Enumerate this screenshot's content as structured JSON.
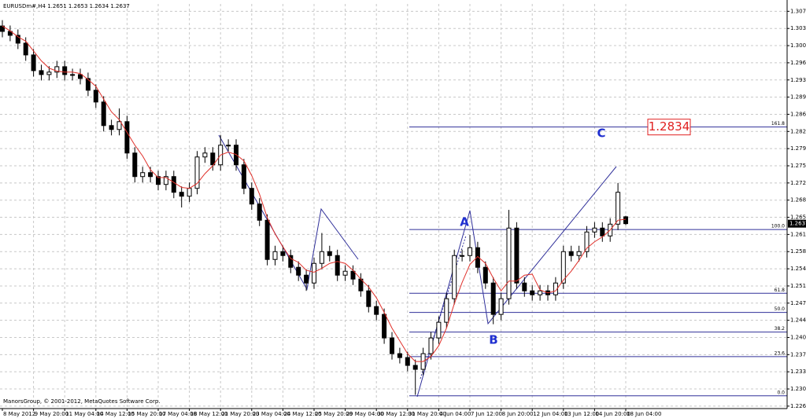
{
  "chart_data": {
    "type": "candlestick",
    "title": "EURUSDm#,H4  1.2651 1.2653 1.2634 1.2637",
    "footer": "ManorsGroup, © 2001-2012, MetaQuotes Software Corp.",
    "categories": [
      "8 May 2012",
      null,
      null,
      null,
      "9 May 20:00",
      null,
      null,
      null,
      "11 May 04:00",
      null,
      null,
      null,
      "14 May 12:00",
      null,
      null,
      null,
      "15 May 20:00",
      null,
      null,
      null,
      "17 May 04:00",
      null,
      null,
      null,
      "18 May 12:00",
      null,
      null,
      null,
      "21 May 20:00",
      null,
      null,
      null,
      "23 May 04:00",
      null,
      null,
      null,
      "24 May 12:00",
      null,
      null,
      null,
      "25 May 20:00",
      null,
      null,
      null,
      "29 May 04:00",
      null,
      null,
      null,
      "30 May 12:00",
      null,
      null,
      null,
      "31 May 20:00",
      null,
      null,
      null,
      "4 Jun 04:00",
      null,
      null,
      null,
      "7 Jun 12:00",
      null,
      null,
      null,
      "8 Jun 20:00",
      null,
      null,
      null,
      "12 Jun 04:00",
      null,
      null,
      null,
      "13 Jun 12:00",
      null,
      null,
      null,
      "14 Jun 20:00",
      null,
      null,
      null,
      "18 Jun 04:00"
    ],
    "open": [
      1.304,
      1.3029,
      1.3021,
      1.3005,
      1.2981,
      1.2949,
      1.2941,
      1.2946,
      1.2957,
      1.2941,
      1.2941,
      1.2933,
      1.2909,
      1.2885,
      1.2837,
      1.2829,
      1.2845,
      1.2781,
      1.2733,
      1.2741,
      1.2733,
      1.2717,
      1.2733,
      1.2701,
      1.2693,
      1.2709,
      1.2773,
      1.2781,
      1.2757,
      1.2797,
      1.2797,
      1.2757,
      1.2709,
      1.2677,
      1.2644,
      1.2564,
      1.258,
      1.2572,
      1.2548,
      1.2532,
      1.2516,
      1.2556,
      1.258,
      1.2572,
      1.2532,
      1.254,
      1.2524,
      1.25,
      1.2468,
      1.2452,
      1.2404,
      1.2372,
      1.2364,
      1.2348,
      1.234,
      1.2372,
      1.2404,
      1.2436,
      1.2484,
      1.2572,
      1.2572,
      1.2588,
      1.2548,
      1.2516,
      1.2452,
      1.2484,
      1.2628,
      1.2516,
      1.25,
      1.2492,
      1.25,
      1.2492,
      1.2516,
      1.258,
      1.2572,
      1.258,
      1.262,
      1.2628,
      1.2612,
      1.2636,
      1.2651
    ],
    "high": [
      1.3052,
      1.3041,
      1.3033,
      1.3017,
      1.2993,
      1.2961,
      1.2958,
      1.2969,
      1.2969,
      1.2953,
      1.2953,
      1.2945,
      1.2921,
      1.2897,
      1.2849,
      1.2872,
      1.2857,
      1.2793,
      1.2753,
      1.2753,
      1.2745,
      1.2745,
      1.2745,
      1.2713,
      1.2721,
      1.2785,
      1.2793,
      1.2793,
      1.2818,
      1.2809,
      1.2809,
      1.2769,
      1.2721,
      1.2689,
      1.2656,
      1.2592,
      1.2592,
      1.2584,
      1.256,
      1.2544,
      1.2568,
      1.2618,
      1.2592,
      1.2584,
      1.2552,
      1.2552,
      1.2536,
      1.2512,
      1.248,
      1.2464,
      1.2416,
      1.2384,
      1.2376,
      1.236,
      1.2384,
      1.2416,
      1.2448,
      1.2496,
      1.2584,
      1.2584,
      1.2614,
      1.26,
      1.256,
      1.2528,
      1.2496,
      1.2665,
      1.264,
      1.2528,
      1.2512,
      1.2512,
      1.2512,
      1.2528,
      1.2592,
      1.2592,
      1.2592,
      1.2632,
      1.264,
      1.264,
      1.2648,
      1.272,
      1.2653
    ],
    "low": [
      1.3017,
      1.3009,
      1.2993,
      1.2969,
      1.2937,
      1.2929,
      1.2929,
      1.2934,
      1.2929,
      1.2929,
      1.2921,
      1.2897,
      1.2873,
      1.2825,
      1.2817,
      1.2817,
      1.2769,
      1.2721,
      1.2721,
      1.2721,
      1.2705,
      1.2705,
      1.2689,
      1.267,
      1.2681,
      1.2697,
      1.2761,
      1.2745,
      1.2745,
      1.2785,
      1.2745,
      1.2697,
      1.2665,
      1.2632,
      1.2552,
      1.2552,
      1.256,
      1.2536,
      1.252,
      1.25,
      1.2504,
      1.2544,
      1.256,
      1.252,
      1.252,
      1.2512,
      1.2488,
      1.2456,
      1.244,
      1.2392,
      1.236,
      1.2352,
      1.2336,
      1.2288,
      1.2328,
      1.236,
      1.2392,
      1.2424,
      1.2472,
      1.256,
      1.256,
      1.2536,
      1.2504,
      1.2432,
      1.244,
      1.2472,
      1.2504,
      1.2488,
      1.248,
      1.248,
      1.248,
      1.248,
      1.2504,
      1.256,
      1.256,
      1.2568,
      1.2608,
      1.26,
      1.26,
      1.2624,
      1.2634
    ],
    "close": [
      1.3029,
      1.3021,
      1.3005,
      1.2981,
      1.2949,
      1.2941,
      1.2946,
      1.2957,
      1.2941,
      1.2941,
      1.2933,
      1.2909,
      1.2885,
      1.2837,
      1.2829,
      1.2845,
      1.2781,
      1.2733,
      1.2741,
      1.2733,
      1.2717,
      1.2733,
      1.2701,
      1.2693,
      1.2709,
      1.2773,
      1.2781,
      1.2757,
      1.2797,
      1.2797,
      1.2757,
      1.2709,
      1.2677,
      1.2644,
      1.2564,
      1.258,
      1.2572,
      1.2548,
      1.2532,
      1.2516,
      1.2556,
      1.258,
      1.2572,
      1.2532,
      1.254,
      1.2524,
      1.25,
      1.2468,
      1.2452,
      1.2404,
      1.2372,
      1.2364,
      1.2348,
      1.234,
      1.2372,
      1.2404,
      1.2436,
      1.2484,
      1.2572,
      1.2572,
      1.2588,
      1.2548,
      1.2516,
      1.2452,
      1.2484,
      1.2628,
      1.2516,
      1.25,
      1.2492,
      1.25,
      1.2492,
      1.2516,
      1.258,
      1.2572,
      1.258,
      1.262,
      1.2628,
      1.2612,
      1.2636,
      1.2701,
      1.2637
    ],
    "up_color": "#ffffff",
    "down_color": "#000000",
    "moving_average": {
      "color": "#e0302a",
      "values": [
        1.304,
        1.303,
        1.3018,
        1.3009,
        1.2989,
        1.2969,
        1.2954,
        1.2948,
        1.2946,
        1.2946,
        1.2943,
        1.2931,
        1.2917,
        1.2891,
        1.2865,
        1.2849,
        1.2823,
        1.2797,
        1.2775,
        1.2747,
        1.2731,
        1.2731,
        1.2721,
        1.2711,
        1.2709,
        1.2719,
        1.2739,
        1.2755,
        1.2777,
        1.2783,
        1.2778,
        1.2765,
        1.2735,
        1.2697,
        1.2649,
        1.2616,
        1.259,
        1.2566,
        1.2558,
        1.2542,
        1.2538,
        1.2546,
        1.2556,
        1.256,
        1.2556,
        1.2542,
        1.2524,
        1.2508,
        1.2486,
        1.2456,
        1.2424,
        1.2398,
        1.2372,
        1.2356,
        1.2356,
        1.2366,
        1.2388,
        1.2424,
        1.2474,
        1.2517,
        1.2554,
        1.257,
        1.2556,
        1.2526,
        1.25,
        1.252,
        1.252,
        1.2532,
        1.2534,
        1.2502,
        1.2496,
        1.25,
        1.2522,
        1.254,
        1.2562,
        1.2587,
        1.26,
        1.261,
        1.2624,
        1.2644,
        1.2646
      ]
    },
    "fib_color": "#30309a",
    "fib_levels": [
      {
        "label": "161.8",
        "price": 1.2834
      },
      {
        "label": "100.0",
        "price": 1.2625
      },
      {
        "label": "61.8",
        "price": 1.2495
      },
      {
        "label": "50.0",
        "price": 1.2456
      },
      {
        "label": "38.2",
        "price": 1.2416
      },
      {
        "label": "23.6",
        "price": 1.2366
      },
      {
        "label": "0.0",
        "price": 1.2286
      }
    ],
    "annotations": [
      "A",
      "B",
      "C"
    ],
    "target_price": 1.2834,
    "last_price": 1.2637,
    "ylim": [
      1.226,
      1.3085
    ],
    "yticks": [
      {
        "value": 1.307,
        "label": "1.3070"
      },
      1.3035,
      {
        "value": 1.3,
        "label": "1.3000"
      },
      1.2965,
      {
        "value": 1.293,
        "label": "1.2930"
      },
      1.2895,
      {
        "value": 1.286,
        "label": "1.2860"
      },
      1.2825,
      {
        "value": 1.279,
        "label": "1.2790"
      },
      1.2755,
      {
        "value": 1.272,
        "label": "1.2720"
      },
      1.2685,
      {
        "value": 1.265,
        "label": "1.2650"
      },
      1.2615,
      {
        "value": 1.258,
        "label": "1.2580"
      },
      1.2545,
      {
        "value": 1.251,
        "label": "1.2510"
      },
      1.2475,
      {
        "value": 1.244,
        "label": "1.2440"
      },
      1.2405,
      {
        "value": 1.237,
        "label": "1.2370"
      },
      1.2335,
      {
        "value": 1.23,
        "label": "1.2300"
      },
      1.2265
    ],
    "grid": true
  }
}
